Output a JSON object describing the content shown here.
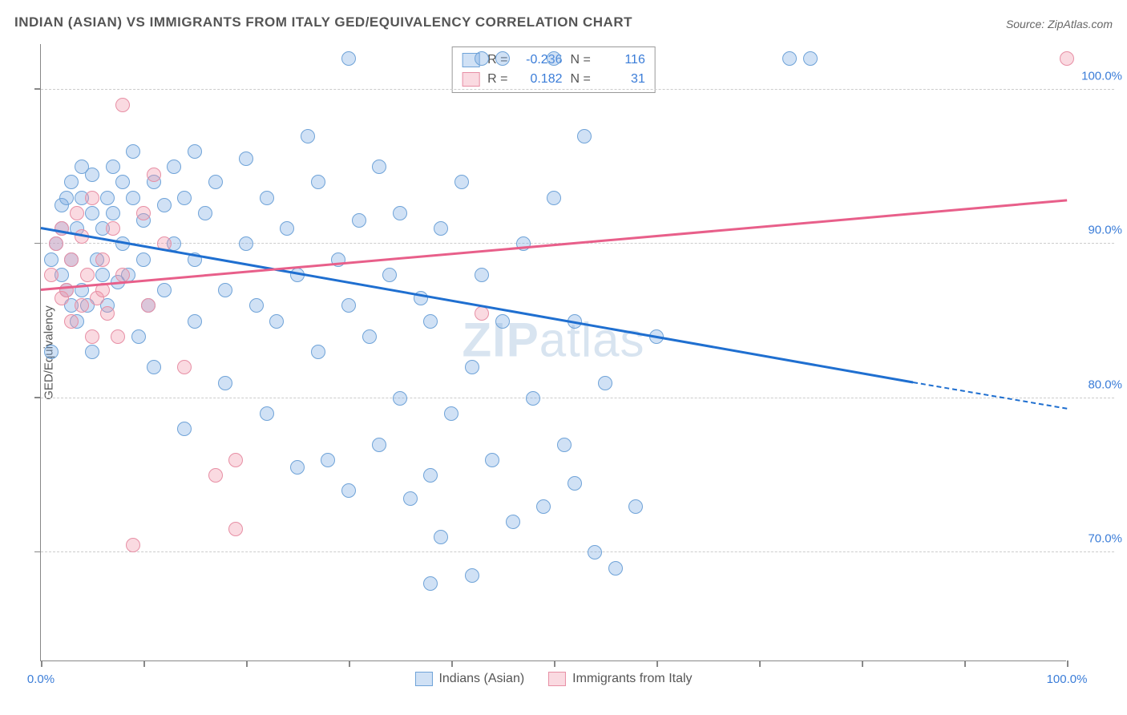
{
  "title": "INDIAN (ASIAN) VS IMMIGRANTS FROM ITALY GED/EQUIVALENCY CORRELATION CHART",
  "source": "Source: ZipAtlas.com",
  "y_axis_label": "GED/Equivalency",
  "watermark_a": "ZIP",
  "watermark_b": "atlas",
  "chart": {
    "type": "scatter",
    "background_color": "#ffffff",
    "grid_color": "#cccccc",
    "axis_color": "#888888",
    "xlim": [
      0,
      100
    ],
    "ylim": [
      63,
      103
    ],
    "x_ticks": [
      0,
      10,
      20,
      30,
      40,
      50,
      60,
      70,
      80,
      90,
      100
    ],
    "x_tick_labels": {
      "0": "0.0%",
      "100": "100.0%"
    },
    "y_ticks": [
      70,
      80,
      90,
      100
    ],
    "y_tick_labels": {
      "70": "70.0%",
      "80": "80.0%",
      "90": "90.0%",
      "100": "100.0%"
    },
    "marker_radius": 9,
    "series": [
      {
        "name": "Indians (Asian)",
        "fill_color": "rgba(120,170,225,0.35)",
        "stroke_color": "#6fa3d8",
        "line_color": "#1f6fd0",
        "trend": {
          "x1": 0,
          "y1": 91.0,
          "x2": 85,
          "y2": 81.0,
          "dash_to_x": 100,
          "dash_to_y": 79.3
        },
        "r_label": "R =",
        "r_value": "-0.236",
        "n_label": "N =",
        "n_value": "116",
        "points": [
          [
            1,
            83
          ],
          [
            1,
            89
          ],
          [
            1.5,
            90
          ],
          [
            2,
            91
          ],
          [
            2,
            88
          ],
          [
            2,
            92.5
          ],
          [
            2.5,
            87
          ],
          [
            2.5,
            93
          ],
          [
            3,
            86
          ],
          [
            3,
            94
          ],
          [
            3,
            89
          ],
          [
            3.5,
            91
          ],
          [
            3.5,
            85
          ],
          [
            4,
            93
          ],
          [
            4,
            87
          ],
          [
            4,
            95
          ],
          [
            4.5,
            86
          ],
          [
            5,
            92
          ],
          [
            5,
            94.5
          ],
          [
            5,
            83
          ],
          [
            5.5,
            89
          ],
          [
            6,
            91
          ],
          [
            6,
            88
          ],
          [
            6.5,
            93
          ],
          [
            6.5,
            86
          ],
          [
            7,
            92
          ],
          [
            7,
            95
          ],
          [
            7.5,
            87.5
          ],
          [
            8,
            94
          ],
          [
            8,
            90
          ],
          [
            8.5,
            88
          ],
          [
            9,
            93
          ],
          [
            9,
            96
          ],
          [
            9.5,
            84
          ],
          [
            10,
            91.5
          ],
          [
            10,
            89
          ],
          [
            10.5,
            86
          ],
          [
            11,
            94
          ],
          [
            11,
            82
          ],
          [
            12,
            92.5
          ],
          [
            12,
            87
          ],
          [
            13,
            90
          ],
          [
            13,
            95
          ],
          [
            14,
            93
          ],
          [
            14,
            78
          ],
          [
            15,
            96
          ],
          [
            15,
            85
          ],
          [
            15,
            89
          ],
          [
            16,
            92
          ],
          [
            17,
            94
          ],
          [
            18,
            87
          ],
          [
            18,
            81
          ],
          [
            20,
            95.5
          ],
          [
            20,
            90
          ],
          [
            21,
            86
          ],
          [
            22,
            93
          ],
          [
            22,
            79
          ],
          [
            23,
            85
          ],
          [
            24,
            91
          ],
          [
            25,
            75.5
          ],
          [
            25,
            88
          ],
          [
            26,
            97
          ],
          [
            27,
            83
          ],
          [
            27,
            94
          ],
          [
            28,
            76
          ],
          [
            29,
            89
          ],
          [
            30,
            102
          ],
          [
            30,
            86
          ],
          [
            30,
            74
          ],
          [
            31,
            91.5
          ],
          [
            32,
            84
          ],
          [
            33,
            95
          ],
          [
            33,
            77
          ],
          [
            34,
            88
          ],
          [
            35,
            80
          ],
          [
            35,
            92
          ],
          [
            36,
            73.5
          ],
          [
            37,
            86.5
          ],
          [
            38,
            68
          ],
          [
            38,
            75
          ],
          [
            39,
            71
          ],
          [
            38,
            85
          ],
          [
            39,
            91
          ],
          [
            40,
            79
          ],
          [
            41,
            94
          ],
          [
            42,
            82
          ],
          [
            42,
            68.5
          ],
          [
            43,
            102
          ],
          [
            43,
            88
          ],
          [
            44,
            76
          ],
          [
            45,
            102
          ],
          [
            45,
            85
          ],
          [
            46,
            72
          ],
          [
            47,
            90
          ],
          [
            48,
            80
          ],
          [
            49,
            73
          ],
          [
            50,
            93
          ],
          [
            51,
            77
          ],
          [
            52,
            74.5
          ],
          [
            52,
            85
          ],
          [
            53,
            97
          ],
          [
            54,
            70
          ],
          [
            55,
            81
          ],
          [
            56,
            69
          ],
          [
            58,
            73
          ],
          [
            60,
            84
          ],
          [
            73,
            102
          ],
          [
            75,
            102
          ],
          [
            50,
            102
          ]
        ]
      },
      {
        "name": "Immigrants from Italy",
        "fill_color": "rgba(240,150,170,0.35)",
        "stroke_color": "#e78fa5",
        "line_color": "#e85f8a",
        "trend": {
          "x1": 0,
          "y1": 87.0,
          "x2": 100,
          "y2": 92.8
        },
        "r_label": "R =",
        "r_value": "0.182",
        "n_label": "N =",
        "n_value": "31",
        "points": [
          [
            1,
            88
          ],
          [
            1.5,
            90
          ],
          [
            2,
            86.5
          ],
          [
            2,
            91
          ],
          [
            2.5,
            87
          ],
          [
            3,
            85
          ],
          [
            3,
            89
          ],
          [
            3.5,
            92
          ],
          [
            4,
            86
          ],
          [
            4,
            90.5
          ],
          [
            4.5,
            88
          ],
          [
            5,
            84
          ],
          [
            5,
            93
          ],
          [
            5.5,
            86.5
          ],
          [
            6,
            89
          ],
          [
            6,
            87
          ],
          [
            6.5,
            85.5
          ],
          [
            7,
            91
          ],
          [
            7.5,
            84
          ],
          [
            8,
            99
          ],
          [
            8,
            88
          ],
          [
            9,
            70.5
          ],
          [
            10,
            92
          ],
          [
            10.5,
            86
          ],
          [
            11,
            94.5
          ],
          [
            12,
            90
          ],
          [
            14,
            82
          ],
          [
            17,
            75
          ],
          [
            19,
            76
          ],
          [
            19,
            71.5
          ],
          [
            43,
            85.5
          ],
          [
            100,
            102
          ]
        ]
      }
    ]
  }
}
